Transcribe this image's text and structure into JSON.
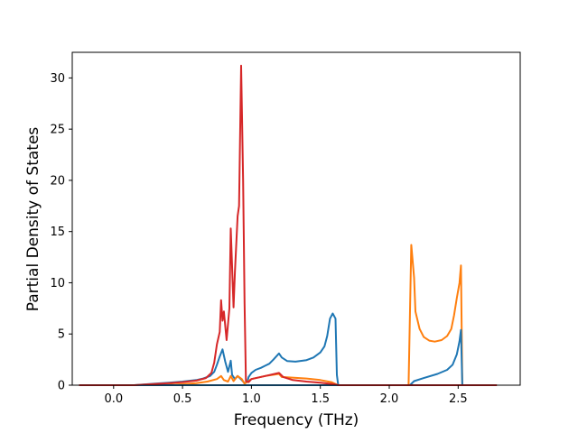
{
  "chart_data": {
    "type": "line",
    "title": "",
    "xlabel": "Frequency (THz)",
    "ylabel": "Partial Density of States",
    "xlim": [
      -0.3,
      2.95
    ],
    "ylim": [
      0,
      32.5
    ],
    "xticks": [
      0.0,
      0.5,
      1.0,
      1.5,
      2.0,
      2.5
    ],
    "xtick_labels": [
      "0.0",
      "0.5",
      "1.0",
      "1.5",
      "2.0",
      "2.5"
    ],
    "yticks": [
      0,
      5,
      10,
      15,
      20,
      25,
      30
    ],
    "ytick_labels": [
      "0",
      "5",
      "10",
      "15",
      "20",
      "25",
      "30"
    ],
    "grid": false,
    "legend": false,
    "series": [
      {
        "color": "#1f77b4",
        "points": [
          [
            -0.25,
            0
          ],
          [
            0.15,
            0
          ],
          [
            0.3,
            0.15
          ],
          [
            0.4,
            0.25
          ],
          [
            0.5,
            0.35
          ],
          [
            0.6,
            0.5
          ],
          [
            0.65,
            0.65
          ],
          [
            0.7,
            0.9
          ],
          [
            0.73,
            1.3
          ],
          [
            0.75,
            2.0
          ],
          [
            0.77,
            2.8
          ],
          [
            0.79,
            3.5
          ],
          [
            0.81,
            2.3
          ],
          [
            0.83,
            1.3
          ],
          [
            0.85,
            2.4
          ],
          [
            0.86,
            1.0
          ],
          [
            0.88,
            0.6
          ],
          [
            0.9,
            0.9
          ],
          [
            0.93,
            0.5
          ],
          [
            0.95,
            0.2
          ],
          [
            0.97,
            0.3
          ],
          [
            0.98,
            0.8
          ],
          [
            1.0,
            1.2
          ],
          [
            1.03,
            1.5
          ],
          [
            1.07,
            1.7
          ],
          [
            1.1,
            1.9
          ],
          [
            1.13,
            2.1
          ],
          [
            1.16,
            2.5
          ],
          [
            1.2,
            3.1
          ],
          [
            1.22,
            2.7
          ],
          [
            1.26,
            2.35
          ],
          [
            1.32,
            2.3
          ],
          [
            1.4,
            2.45
          ],
          [
            1.45,
            2.7
          ],
          [
            1.5,
            3.2
          ],
          [
            1.53,
            3.8
          ],
          [
            1.55,
            4.8
          ],
          [
            1.57,
            6.5
          ],
          [
            1.59,
            7.0
          ],
          [
            1.61,
            6.5
          ],
          [
            1.62,
            1.0
          ],
          [
            1.63,
            0
          ],
          [
            2.78,
            0
          ]
        ]
      },
      {
        "color": "#ff7f0e",
        "points": [
          [
            -0.25,
            0
          ],
          [
            0.3,
            0
          ],
          [
            0.45,
            0.05
          ],
          [
            0.6,
            0.2
          ],
          [
            0.68,
            0.35
          ],
          [
            0.75,
            0.6
          ],
          [
            0.78,
            0.9
          ],
          [
            0.8,
            0.5
          ],
          [
            0.83,
            0.35
          ],
          [
            0.85,
            0.9
          ],
          [
            0.87,
            0.4
          ],
          [
            0.9,
            0.9
          ],
          [
            0.93,
            0.6
          ],
          [
            0.95,
            0.15
          ],
          [
            1.0,
            0.6
          ],
          [
            1.1,
            0.9
          ],
          [
            1.2,
            1.1
          ],
          [
            1.22,
            0.8
          ],
          [
            1.4,
            0.65
          ],
          [
            1.5,
            0.5
          ],
          [
            1.58,
            0.3
          ],
          [
            1.63,
            0
          ],
          [
            2.14,
            0
          ],
          [
            2.16,
            13.7
          ],
          [
            2.18,
            10.5
          ],
          [
            2.19,
            7.2
          ],
          [
            2.22,
            5.5
          ],
          [
            2.25,
            4.7
          ],
          [
            2.29,
            4.35
          ],
          [
            2.33,
            4.25
          ],
          [
            2.38,
            4.4
          ],
          [
            2.42,
            4.8
          ],
          [
            2.45,
            5.5
          ],
          [
            2.47,
            6.8
          ],
          [
            2.49,
            8.5
          ],
          [
            2.51,
            10.0
          ],
          [
            2.52,
            11.7
          ],
          [
            2.53,
            0
          ],
          [
            2.78,
            0
          ]
        ]
      },
      {
        "color": "#1f77b4",
        "points": [
          [
            -0.25,
            0
          ],
          [
            2.15,
            0
          ],
          [
            2.18,
            0.4
          ],
          [
            2.25,
            0.7
          ],
          [
            2.35,
            1.1
          ],
          [
            2.42,
            1.5
          ],
          [
            2.46,
            2.0
          ],
          [
            2.49,
            3.0
          ],
          [
            2.51,
            4.3
          ],
          [
            2.52,
            5.4
          ],
          [
            2.53,
            0
          ]
        ]
      },
      {
        "color": "#d62728",
        "points": [
          [
            -0.25,
            0
          ],
          [
            0.15,
            0
          ],
          [
            0.3,
            0.12
          ],
          [
            0.4,
            0.2
          ],
          [
            0.5,
            0.3
          ],
          [
            0.6,
            0.45
          ],
          [
            0.67,
            0.7
          ],
          [
            0.71,
            1.2
          ],
          [
            0.73,
            2.2
          ],
          [
            0.75,
            4.0
          ],
          [
            0.77,
            5.2
          ],
          [
            0.78,
            8.3
          ],
          [
            0.79,
            6.3
          ],
          [
            0.8,
            7.2
          ],
          [
            0.82,
            4.4
          ],
          [
            0.84,
            7.5
          ],
          [
            0.85,
            15.3
          ],
          [
            0.87,
            7.6
          ],
          [
            0.88,
            11.0
          ],
          [
            0.9,
            16.5
          ],
          [
            0.91,
            17.5
          ],
          [
            0.925,
            31.2
          ],
          [
            0.94,
            20.0
          ],
          [
            0.95,
            8.0
          ],
          [
            0.96,
            0.4
          ],
          [
            0.98,
            0.3
          ],
          [
            1.0,
            0.6
          ],
          [
            1.1,
            0.9
          ],
          [
            1.2,
            1.2
          ],
          [
            1.23,
            0.8
          ],
          [
            1.3,
            0.5
          ],
          [
            1.4,
            0.35
          ],
          [
            1.5,
            0.25
          ],
          [
            1.6,
            0.1
          ],
          [
            1.63,
            0
          ],
          [
            2.78,
            0
          ]
        ]
      }
    ]
  }
}
